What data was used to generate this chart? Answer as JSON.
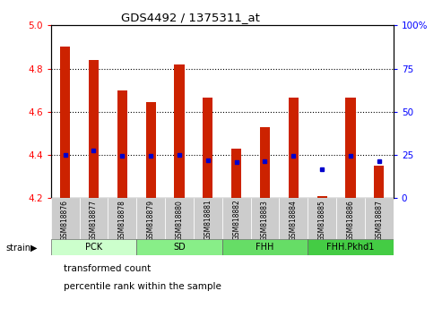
{
  "title": "GDS4492 / 1375311_at",
  "samples": [
    "GSM818876",
    "GSM818877",
    "GSM818878",
    "GSM818879",
    "GSM818880",
    "GSM818881",
    "GSM818882",
    "GSM818883",
    "GSM818884",
    "GSM818885",
    "GSM818886",
    "GSM818887"
  ],
  "red_values": [
    4.9,
    4.84,
    4.7,
    4.645,
    4.82,
    4.665,
    4.43,
    4.53,
    4.665,
    4.21,
    4.665,
    4.35
  ],
  "blue_values": [
    4.4,
    4.42,
    4.395,
    4.395,
    4.4,
    4.375,
    4.365,
    4.37,
    4.395,
    4.335,
    4.395,
    4.37
  ],
  "y_min": 4.2,
  "y_max": 5.0,
  "y_ticks_left": [
    4.2,
    4.4,
    4.6,
    4.8,
    5.0
  ],
  "y_ticks_right": [
    0,
    25,
    50,
    75,
    100
  ],
  "groups": [
    {
      "label": "PCK",
      "start": 0,
      "end": 2,
      "color": "#ccffcc"
    },
    {
      "label": "SD",
      "start": 3,
      "end": 5,
      "color": "#88ee88"
    },
    {
      "label": "FHH",
      "start": 6,
      "end": 8,
      "color": "#66dd66"
    },
    {
      "label": "FHH.Pkhd1",
      "start": 9,
      "end": 11,
      "color": "#44cc44"
    }
  ],
  "bar_color": "#cc2200",
  "dot_color": "#0000cc",
  "bar_width": 0.35,
  "bg_xticklabels": "#cccccc",
  "legend_items": [
    "transformed count",
    "percentile rank within the sample"
  ],
  "group_colors": [
    "#ccffcc",
    "#88ee88",
    "#66dd66",
    "#44cc44"
  ]
}
